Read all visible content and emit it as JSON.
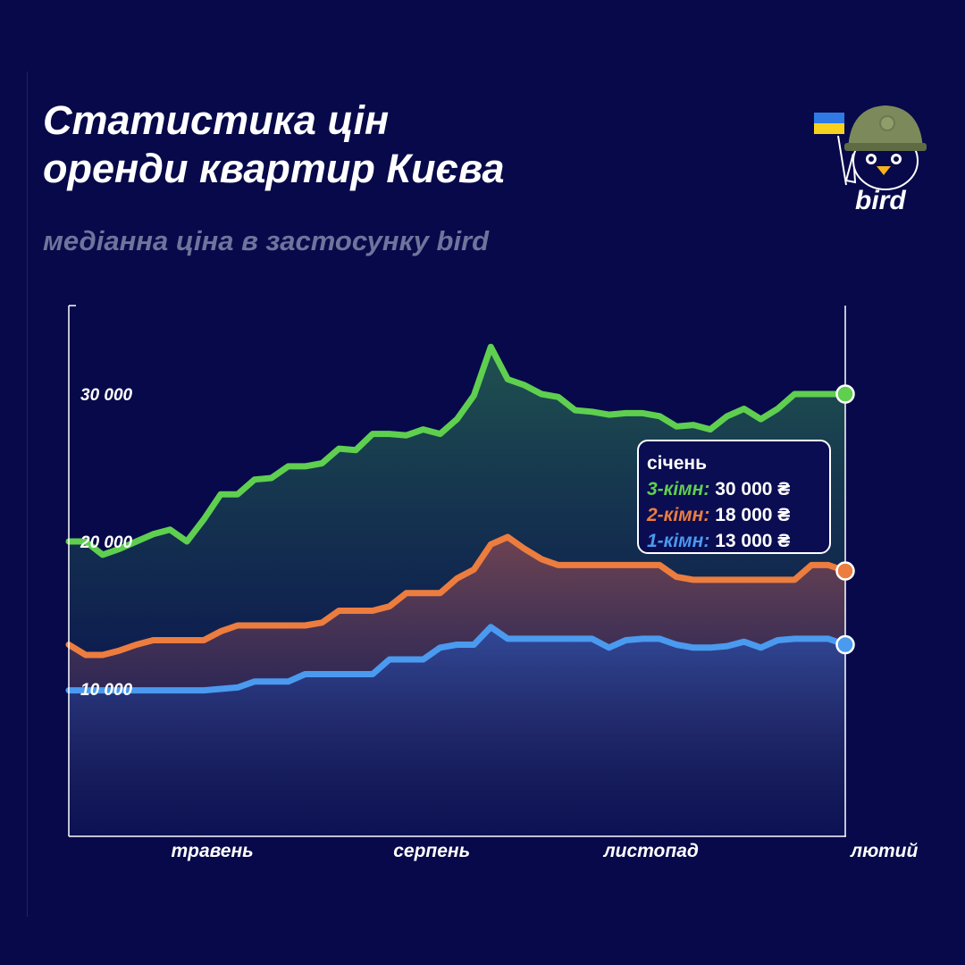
{
  "header": {
    "title_line1": "Статистика цін",
    "title_line2": "оренди квартир Києва",
    "subtitle": "медіанна ціна в застосунку bird"
  },
  "brand": {
    "name": "bird",
    "icon": "bird-helmet-with-ukraine-flag-icon"
  },
  "colors": {
    "background": "#07094a",
    "three_room": "#5fcf4f",
    "two_room": "#ec7d3f",
    "one_room": "#4a9af0"
  },
  "tooltip": {
    "month": "січень",
    "rows": [
      {
        "label": "3-кімн:",
        "value": "30 000 ₴",
        "color": "#5fcf4f"
      },
      {
        "label": "2-кімн:",
        "value": "18 000 ₴",
        "color": "#ec7d3f"
      },
      {
        "label": "1-кімн:",
        "value": "13 000 ₴",
        "color": "#4a9af0"
      }
    ]
  },
  "chart_data": {
    "type": "area",
    "title": "Статистика цін оренди квартир Києва",
    "subtitle": "медіанна ціна в застосунку bird",
    "ylim": [
      0,
      36000
    ],
    "y_tick_values": [
      10000,
      20000,
      30000
    ],
    "y_tick_labels": [
      "10 000",
      "20 000",
      "30 000"
    ],
    "x_range": [
      0,
      46
    ],
    "x_tick_positions": [
      8.5,
      21.5,
      34.5,
      46
    ],
    "x_tick_labels": [
      "травень",
      "серпень",
      "листопад",
      "лютий"
    ],
    "grid": false,
    "series": [
      {
        "name": "3-кімн",
        "color": "#5fcf4f",
        "values": [
          20000,
          20000,
          19100,
          19500,
          20000,
          20500,
          20800,
          20000,
          21500,
          23200,
          23200,
          24200,
          24300,
          25100,
          25100,
          25300,
          26300,
          26200,
          27300,
          27300,
          27200,
          27600,
          27300,
          28300,
          29900,
          33200,
          31000,
          30600,
          30000,
          29800,
          28900,
          28800,
          28600,
          28700,
          28700,
          28500,
          27800,
          27900,
          27600,
          28500,
          29000,
          28300,
          29000,
          30000,
          30000,
          30000,
          30000
        ]
      },
      {
        "name": "2-кімн",
        "color": "#ec7d3f",
        "values": [
          13000,
          12300,
          12300,
          12600,
          13000,
          13300,
          13300,
          13300,
          13300,
          13900,
          14300,
          14300,
          14300,
          14300,
          14300,
          14500,
          15300,
          15300,
          15300,
          15600,
          16500,
          16500,
          16500,
          17500,
          18100,
          19800,
          20300,
          19500,
          18800,
          18400,
          18400,
          18400,
          18400,
          18400,
          18400,
          18400,
          17600,
          17400,
          17400,
          17400,
          17400,
          17400,
          17400,
          17400,
          18400,
          18400,
          18000
        ]
      },
      {
        "name": "1-кімн",
        "color": "#4a9af0",
        "values": [
          9900,
          9900,
          9900,
          9900,
          9900,
          9900,
          9900,
          9900,
          9900,
          10000,
          10100,
          10500,
          10500,
          10500,
          11000,
          11000,
          11000,
          11000,
          11000,
          12000,
          12000,
          12000,
          12800,
          13000,
          13000,
          14200,
          13400,
          13400,
          13400,
          13400,
          13400,
          13400,
          12800,
          13300,
          13400,
          13400,
          13000,
          12800,
          12800,
          12900,
          13200,
          12800,
          13300,
          13400,
          13400,
          13400,
          13000
        ]
      }
    ],
    "callout": {
      "month": "січень",
      "values": [
        {
          "series": "3-кімн",
          "value": 30000,
          "unit": "₴"
        },
        {
          "series": "2-кімн",
          "value": 18000,
          "unit": "₴"
        },
        {
          "series": "1-кімн",
          "value": 13000,
          "unit": "₴"
        }
      ]
    }
  }
}
